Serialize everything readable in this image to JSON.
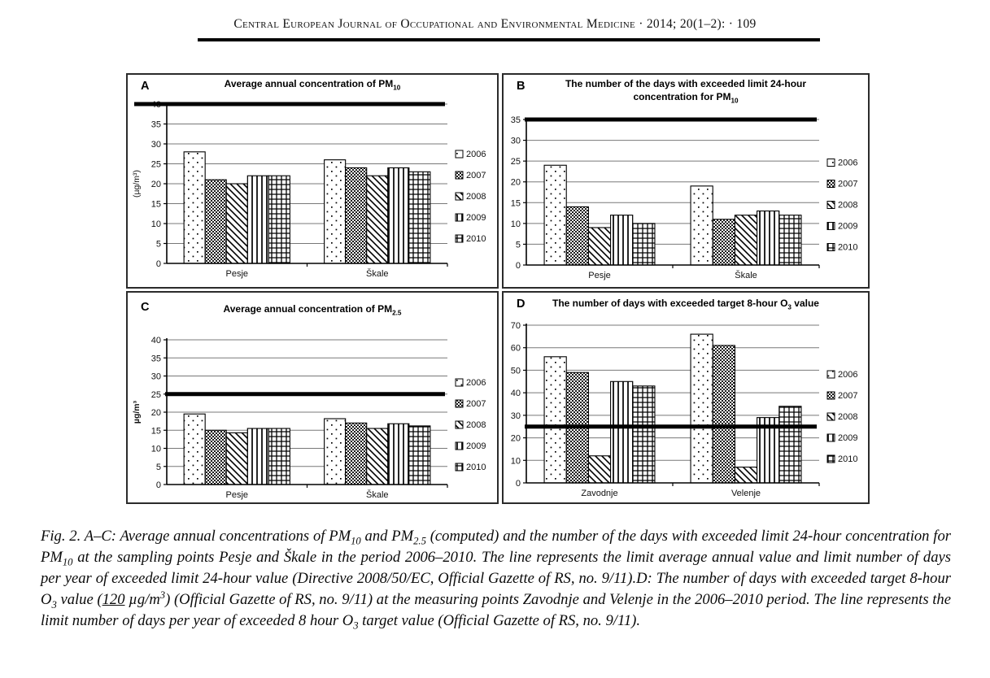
{
  "header": {
    "text": "Central European Journal of Occupational and Environmental Medicine · 2014; 20(1–2): · 109"
  },
  "colors": {
    "ink": "#000000",
    "grid": "#787878",
    "panel_border": "#2b2b2b",
    "bar_fill_base": "#ffffff"
  },
  "chart_data": [
    {
      "id": "A",
      "type": "bar",
      "title": [
        {
          "v": "Average annual concentration of PM"
        },
        {
          "s": "sub",
          "v": "10"
        }
      ],
      "ylabel": "(µg/m³)",
      "ylabel_bold": false,
      "ylim": [
        0,
        40
      ],
      "ystep": 5,
      "limit_line": 40,
      "grid": "on",
      "legend_position": "right",
      "categories": [
        "Pesje",
        "Škale"
      ],
      "series": [
        {
          "name": "2006",
          "pattern": "dots",
          "values": [
            28,
            26
          ]
        },
        {
          "name": "2007",
          "pattern": "checker",
          "values": [
            21,
            24
          ]
        },
        {
          "name": "2008",
          "pattern": "diagonal",
          "values": [
            20,
            22
          ]
        },
        {
          "name": "2009",
          "pattern": "vlines",
          "values": [
            22,
            24
          ]
        },
        {
          "name": "2010",
          "pattern": "grid",
          "values": [
            22,
            23
          ]
        }
      ]
    },
    {
      "id": "B",
      "type": "bar",
      "title": [
        {
          "v": "The number of the days with exceeded limit 24-hour concentration for PM"
        },
        {
          "s": "sub",
          "v": "10"
        }
      ],
      "ylabel": null,
      "ylabel_bold": false,
      "ylim": [
        0,
        35
      ],
      "ystep": 5,
      "limit_line": 35,
      "grid": "on",
      "legend_position": "right",
      "categories": [
        "Pesje",
        "Škale"
      ],
      "series": [
        {
          "name": "2006",
          "pattern": "dots",
          "values": [
            24,
            19
          ]
        },
        {
          "name": "2007",
          "pattern": "checker",
          "values": [
            14,
            11
          ]
        },
        {
          "name": "2008",
          "pattern": "diagonal",
          "values": [
            9,
            12
          ]
        },
        {
          "name": "2009",
          "pattern": "vlines",
          "values": [
            12,
            13
          ]
        },
        {
          "name": "2010",
          "pattern": "grid",
          "values": [
            10,
            12
          ]
        }
      ]
    },
    {
      "id": "C",
      "type": "bar",
      "title": [
        {
          "v": "Average annual concentration of PM"
        },
        {
          "s": "sub",
          "v": "2.5"
        }
      ],
      "ylabel": "µg/m³",
      "ylabel_bold": true,
      "ylim": [
        0,
        40
      ],
      "ystep": 5,
      "limit_line": 25,
      "grid": "on",
      "legend_position": "right",
      "categories": [
        "Pesje",
        "Škale"
      ],
      "series": [
        {
          "name": "2006",
          "pattern": "dots",
          "values": [
            19.5,
            18.2
          ]
        },
        {
          "name": "2007",
          "pattern": "checker",
          "values": [
            15,
            17
          ]
        },
        {
          "name": "2008",
          "pattern": "diagonal",
          "values": [
            14.3,
            15.5
          ]
        },
        {
          "name": "2009",
          "pattern": "vlines",
          "values": [
            15.5,
            16.8
          ]
        },
        {
          "name": "2010",
          "pattern": "grid",
          "values": [
            15.5,
            16.2
          ]
        }
      ]
    },
    {
      "id": "D",
      "type": "bar",
      "title": [
        {
          "v": "The number of days with exceeded target 8-hour O"
        },
        {
          "s": "sub",
          "v": "3"
        },
        {
          "v": " value"
        }
      ],
      "ylabel": null,
      "ylabel_bold": false,
      "ylim": [
        0,
        70
      ],
      "ystep": 10,
      "limit_line": 25,
      "grid": "on",
      "legend_position": "right",
      "categories": [
        "Zavodnje",
        "Velenje"
      ],
      "series": [
        {
          "name": "2006",
          "pattern": "dots",
          "values": [
            56,
            66
          ]
        },
        {
          "name": "2007",
          "pattern": "checker",
          "values": [
            49,
            61
          ]
        },
        {
          "name": "2008",
          "pattern": "diagonal",
          "values": [
            12,
            7
          ]
        },
        {
          "name": "2009",
          "pattern": "vlines",
          "values": [
            45,
            29
          ]
        },
        {
          "name": "2010",
          "pattern": "grid",
          "values": [
            43,
            34
          ]
        }
      ]
    }
  ],
  "caption": {
    "segments": [
      {
        "v": "Fig. 2. A–C: Average annual concentrations of PM"
      },
      {
        "s": "sub",
        "v": "10"
      },
      {
        "v": " and PM"
      },
      {
        "s": "sub",
        "v": "2.5"
      },
      {
        "v": " (computed) and the number of the days with exceeded limit 24-hour concentration for PM"
      },
      {
        "s": "sub",
        "v": "10"
      },
      {
        "v": " at the sampling points Pesje and Škale in the period 2006–2010. The line represents the limit average annual value and limit number of days per year of exceeded limit 24-hour value (Directive 2008/50/EC, Official Gazette of RS, no. 9/11).D: The number of days with exceeded target 8-hour O"
      },
      {
        "s": "sub",
        "v": "3"
      },
      {
        "v": " value ("
      },
      {
        "s": "u",
        "v": "120"
      },
      {
        "v": " µg/m"
      },
      {
        "s": "sup",
        "v": "3"
      },
      {
        "v": ") (Official Gazette of RS, no. 9/11) at the measuring points Zavodnje and Velenje in the 2006–2010 period. The line represents the limit number of days per year of exceeded 8 hour O"
      },
      {
        "s": "sub",
        "v": "3"
      },
      {
        "v": " target value (Official Gazette of RS, no. 9/11)."
      }
    ]
  }
}
